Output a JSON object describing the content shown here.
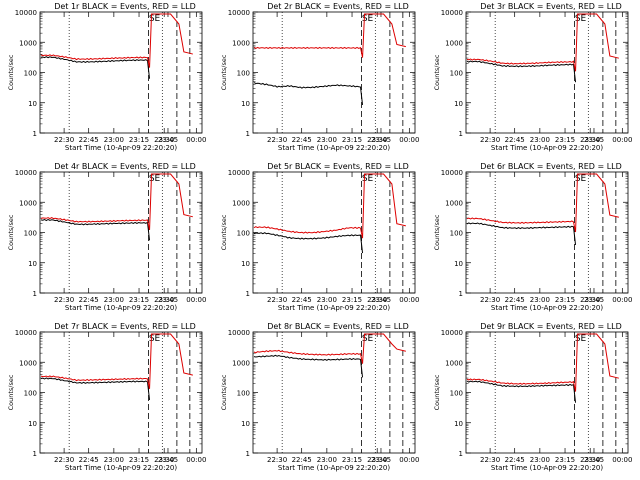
{
  "chart_data": [
    {
      "type": "line",
      "title": "Det 1r BLACK = Events, RED = LLD",
      "ylabel": "Counts/sec",
      "xlabel": "Start Time (10-Apr-09 22:20:20)",
      "x_ticks": [
        "22:30",
        "22:45",
        "23:00",
        "23:15",
        "23:30",
        "23:45",
        "00:00"
      ],
      "y_ticks": [
        "1",
        "10",
        "100",
        "1000",
        "10000"
      ],
      "ylim": [
        1,
        10000
      ],
      "log_y": true,
      "marker_text": "SE",
      "series": [
        {
          "color": "#000000",
          "start": 320,
          "wave": [
            1.0,
            1.0,
            0.85,
            0.7,
            0.7,
            0.72,
            0.75,
            0.78,
            0.8,
            0.8
          ]
        },
        {
          "color": "#dd0000",
          "start": 370,
          "wave": [
            1.0,
            1.0,
            0.88,
            0.75,
            0.75,
            0.77,
            0.8,
            0.82,
            0.85,
            0.85
          ]
        }
      ]
    },
    {
      "type": "line",
      "title": "Det 2r BLACK = Events, RED = LLD",
      "ylabel": "Counts/sec",
      "xlabel": "Start Time (10-Apr-09 22:20:20)",
      "x_ticks": [
        "22:30",
        "22:45",
        "23:00",
        "23:15",
        "23:30",
        "23:45",
        "00:00"
      ],
      "y_ticks": [
        "1",
        "10",
        "100",
        "1000",
        "10000"
      ],
      "ylim": [
        1,
        10000
      ],
      "log_y": true,
      "marker_text": "SE",
      "series": [
        {
          "color": "#000000",
          "start": 45,
          "wave": [
            1.0,
            0.9,
            0.75,
            0.8,
            0.7,
            0.72,
            0.78,
            0.85,
            0.8,
            0.75
          ]
        },
        {
          "color": "#dd0000",
          "start": 650,
          "wave": [
            1.0,
            1.0,
            1.0,
            1.0,
            1.0,
            1.0,
            1.0,
            1.0,
            1.0,
            1.0
          ]
        }
      ]
    },
    {
      "type": "line",
      "title": "Det 3r BLACK = Events, RED = LLD",
      "ylabel": "Counts/sec",
      "xlabel": "Start Time (10-Apr-09 22:20:20)",
      "x_ticks": [
        "22:30",
        "22:45",
        "23:00",
        "23:15",
        "23:30",
        "23:45",
        "00:00"
      ],
      "y_ticks": [
        "1",
        "10",
        "100",
        "1000",
        "10000"
      ],
      "ylim": [
        1,
        10000
      ],
      "log_y": true,
      "marker_text": "SE",
      "series": [
        {
          "color": "#000000",
          "start": 230,
          "wave": [
            1.0,
            1.0,
            0.85,
            0.72,
            0.7,
            0.7,
            0.72,
            0.76,
            0.78,
            0.8
          ]
        },
        {
          "color": "#dd0000",
          "start": 270,
          "wave": [
            1.0,
            1.0,
            0.88,
            0.75,
            0.72,
            0.74,
            0.76,
            0.8,
            0.82,
            0.84
          ]
        }
      ]
    },
    {
      "type": "line",
      "title": "Det 4r BLACK = Events, RED = LLD",
      "ylabel": "Counts/sec",
      "xlabel": "Start Time (10-Apr-09 22:20:20)",
      "x_ticks": [
        "22:30",
        "22:45",
        "23:00",
        "23:15",
        "23:30",
        "23:45",
        "00:00"
      ],
      "y_ticks": [
        "1",
        "10",
        "100",
        "1000",
        "10000"
      ],
      "ylim": [
        1,
        10000
      ],
      "log_y": true,
      "marker_text": "SE",
      "series": [
        {
          "color": "#000000",
          "start": 260,
          "wave": [
            1.0,
            1.0,
            0.85,
            0.72,
            0.72,
            0.74,
            0.76,
            0.78,
            0.8,
            0.8
          ]
        },
        {
          "color": "#dd0000",
          "start": 300,
          "wave": [
            1.0,
            1.0,
            0.88,
            0.76,
            0.76,
            0.78,
            0.8,
            0.82,
            0.84,
            0.85
          ]
        }
      ]
    },
    {
      "type": "line",
      "title": "Det 5r BLACK = Events, RED = LLD",
      "ylabel": "Counts/sec",
      "xlabel": "Start Time (10-Apr-09 22:20:20)",
      "x_ticks": [
        "22:30",
        "22:45",
        "23:00",
        "23:15",
        "23:30",
        "23:45",
        "00:00"
      ],
      "y_ticks": [
        "1",
        "10",
        "100",
        "1000",
        "10000"
      ],
      "ylim": [
        1,
        10000
      ],
      "log_y": true,
      "marker_text": "SE",
      "series": [
        {
          "color": "#000000",
          "start": 95,
          "wave": [
            1.0,
            1.0,
            0.85,
            0.7,
            0.66,
            0.66,
            0.7,
            0.78,
            0.85,
            0.85
          ]
        },
        {
          "color": "#dd0000",
          "start": 150,
          "wave": [
            1.0,
            1.0,
            0.86,
            0.72,
            0.66,
            0.66,
            0.72,
            0.8,
            0.95,
            0.95
          ]
        }
      ]
    },
    {
      "type": "line",
      "title": "Det 6r BLACK = Events, RED = LLD",
      "ylabel": "Counts/sec",
      "xlabel": "Start Time (10-Apr-09 22:20:20)",
      "x_ticks": [
        "22:30",
        "22:45",
        "23:00",
        "23:15",
        "23:30",
        "23:45",
        "00:00"
      ],
      "y_ticks": [
        "1",
        "10",
        "100",
        "1000",
        "10000"
      ],
      "ylim": [
        1,
        10000
      ],
      "log_y": true,
      "marker_text": "SE",
      "series": [
        {
          "color": "#000000",
          "start": 200,
          "wave": [
            1.0,
            1.0,
            0.85,
            0.72,
            0.7,
            0.7,
            0.72,
            0.74,
            0.76,
            0.78
          ]
        },
        {
          "color": "#dd0000",
          "start": 290,
          "wave": [
            1.0,
            1.0,
            0.86,
            0.74,
            0.72,
            0.72,
            0.74,
            0.76,
            0.78,
            0.8
          ]
        }
      ]
    },
    {
      "type": "line",
      "title": "Det 7r BLACK = Events, RED = LLD",
      "ylabel": "Counts/sec",
      "xlabel": "Start Time (10-Apr-09 22:20:20)",
      "x_ticks": [
        "22:30",
        "22:45",
        "23:00",
        "23:15",
        "23:30",
        "23:45",
        "00:00"
      ],
      "y_ticks": [
        "1",
        "10",
        "100",
        "1000",
        "10000"
      ],
      "ylim": [
        1,
        10000
      ],
      "log_y": true,
      "marker_text": "SE",
      "series": [
        {
          "color": "#000000",
          "start": 290,
          "wave": [
            1.0,
            1.0,
            0.85,
            0.72,
            0.72,
            0.74,
            0.76,
            0.78,
            0.8,
            0.8
          ]
        },
        {
          "color": "#dd0000",
          "start": 340,
          "wave": [
            1.0,
            1.0,
            0.88,
            0.75,
            0.76,
            0.78,
            0.8,
            0.82,
            0.84,
            0.85
          ]
        }
      ]
    },
    {
      "type": "line",
      "title": "Det 8r BLACK = Events, RED = LLD",
      "ylabel": "Counts/sec",
      "xlabel": "Start Time (10-Apr-09 22:20:20)",
      "x_ticks": [
        "22:30",
        "22:45",
        "23:00",
        "23:15",
        "23:30",
        "23:45",
        "00:00"
      ],
      "y_ticks": [
        "1",
        "10",
        "100",
        "1000",
        "10000"
      ],
      "ylim": [
        1,
        10000
      ],
      "log_y": true,
      "marker_text": "SE",
      "series": [
        {
          "color": "#000000",
          "start": 1500,
          "wave": [
            1.0,
            1.05,
            1.1,
            0.95,
            0.85,
            0.82,
            0.8,
            0.82,
            0.85,
            0.85
          ]
        },
        {
          "color": "#dd0000",
          "start": 2100,
          "wave": [
            1.0,
            1.1,
            1.15,
            1.0,
            0.9,
            0.86,
            0.84,
            0.86,
            0.9,
            0.9
          ]
        }
      ]
    },
    {
      "type": "line",
      "title": "Det 9r BLACK = Events, RED = LLD",
      "ylabel": "Counts/sec",
      "xlabel": "Start Time (10-Apr-09 22:20:20)",
      "x_ticks": [
        "22:30",
        "22:45",
        "23:00",
        "23:15",
        "23:30",
        "23:45",
        "00:00"
      ],
      "y_ticks": [
        "1",
        "10",
        "100",
        "1000",
        "10000"
      ],
      "ylim": [
        1,
        10000
      ],
      "log_y": true,
      "marker_text": "SE",
      "series": [
        {
          "color": "#000000",
          "start": 230,
          "wave": [
            1.0,
            1.0,
            0.85,
            0.72,
            0.7,
            0.7,
            0.72,
            0.74,
            0.76,
            0.78
          ]
        },
        {
          "color": "#dd0000",
          "start": 270,
          "wave": [
            1.0,
            1.0,
            0.88,
            0.76,
            0.72,
            0.72,
            0.74,
            0.76,
            0.8,
            0.82
          ]
        }
      ]
    }
  ]
}
